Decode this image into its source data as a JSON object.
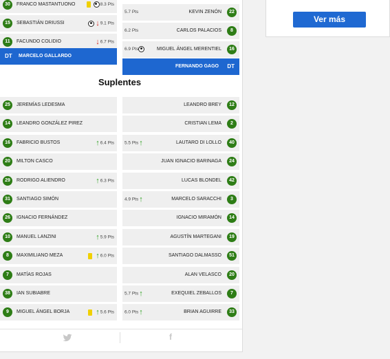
{
  "ver_mas_label": "Ver más",
  "suplentes_title": "Suplentes",
  "coach_label": "DT",
  "coaches": {
    "home": "MARCELO GALLARDO",
    "away": "FERNANDO GAGO"
  },
  "home_starters": [
    {
      "num": "30",
      "name": "FRANCO MASTANTUONO",
      "pts": "8.3 Pts",
      "card": true,
      "goal": true,
      "arrow": ""
    },
    {
      "num": "15",
      "name": "SEBASTIÁN DRIUSSI",
      "pts": "9.1 Pts",
      "card": false,
      "goal": true,
      "arrow": "down"
    },
    {
      "num": "11",
      "name": "FACUNDO COLIDIO",
      "pts": "6.7 Pts",
      "card": false,
      "goal": false,
      "arrow": "down"
    }
  ],
  "away_starters": [
    {
      "num": "22",
      "name": "KEVIN ZENÓN",
      "pts": "5.7 Pts",
      "goal": false,
      "arrow": ""
    },
    {
      "num": "8",
      "name": "CARLOS PALACIOS",
      "pts": "6.2 Pts",
      "goal": false,
      "arrow": ""
    },
    {
      "num": "16",
      "name": "MIGUEL ÁNGEL MERENTIEL",
      "pts": "6.9 Pts",
      "goal": true,
      "arrow": ""
    }
  ],
  "home_subs": [
    {
      "num": "25",
      "name": "JEREMÍAS LEDESMA",
      "pts": "",
      "card": false,
      "arrow": ""
    },
    {
      "num": "14",
      "name": "LEANDRO GONZÁLEZ PIREZ",
      "pts": "",
      "card": false,
      "arrow": ""
    },
    {
      "num": "16",
      "name": "FABRICIO BUSTOS",
      "pts": "6.4 Pts",
      "card": false,
      "arrow": "up"
    },
    {
      "num": "20",
      "name": "MILTON CASCO",
      "pts": "",
      "card": false,
      "arrow": ""
    },
    {
      "num": "29",
      "name": "RODRIGO ALIENDRO",
      "pts": "6.3 Pts",
      "card": false,
      "arrow": "up"
    },
    {
      "num": "31",
      "name": "SANTIAGO SIMÓN",
      "pts": "",
      "card": false,
      "arrow": ""
    },
    {
      "num": "26",
      "name": "IGNACIO FERNÁNDEZ",
      "pts": "",
      "card": false,
      "arrow": ""
    },
    {
      "num": "10",
      "name": "MANUEL LANZINI",
      "pts": "5.9 Pts",
      "card": false,
      "arrow": "up"
    },
    {
      "num": "8",
      "name": "MAXIMILIANO MEZA",
      "pts": "6.0 Pts",
      "card": true,
      "arrow": "up"
    },
    {
      "num": "7",
      "name": "MATÍAS ROJAS",
      "pts": "",
      "card": false,
      "arrow": ""
    },
    {
      "num": "38",
      "name": "IAN SUBIABRE",
      "pts": "",
      "card": false,
      "arrow": ""
    },
    {
      "num": "9",
      "name": "MIGUEL ÁNGEL BORJA",
      "pts": "5.6 Pts",
      "card": true,
      "arrow": "up"
    }
  ],
  "away_subs": [
    {
      "num": "12",
      "name": "LEANDRO BREY",
      "pts": "",
      "arrow": ""
    },
    {
      "num": "2",
      "name": "CRISTIAN LEMA",
      "pts": "",
      "arrow": ""
    },
    {
      "num": "40",
      "name": "LAUTARO DI LOLLO",
      "pts": "5.5 Pts",
      "arrow": "up"
    },
    {
      "num": "24",
      "name": "JUAN IGNACIO BARINAGA",
      "pts": "",
      "arrow": ""
    },
    {
      "num": "42",
      "name": "LUCAS BLONDEL",
      "pts": "",
      "arrow": ""
    },
    {
      "num": "3",
      "name": "MARCELO SARACCHI",
      "pts": "4.9 Pts",
      "arrow": "up"
    },
    {
      "num": "14",
      "name": "IGNACIO MIRAMÓN",
      "pts": "",
      "arrow": ""
    },
    {
      "num": "19",
      "name": "AGUSTÍN MARTEGANI",
      "pts": "",
      "arrow": ""
    },
    {
      "num": "51",
      "name": "SANTIAGO DALMASSO",
      "pts": "",
      "arrow": ""
    },
    {
      "num": "20",
      "name": "ALAN VELASCO",
      "pts": "",
      "arrow": ""
    },
    {
      "num": "7",
      "name": "EXEQUIEL ZEBALLOS",
      "pts": "5.7 Pts",
      "arrow": "up"
    },
    {
      "num": "33",
      "name": "BRIAN AGUIRRE",
      "pts": "6.0 Pts",
      "arrow": "up"
    }
  ],
  "icons": {
    "twitter": "twitter-icon",
    "facebook": "facebook-icon",
    "goal": "soccer-ball-icon",
    "card": "yellow-card-icon"
  },
  "colors": {
    "number_badge": "#2e7d16",
    "coach_bar": "#1e67d0",
    "up_arrow": "#2ea01f",
    "down_arrow": "#d0241c",
    "yellow_card": "#f0d000",
    "button": "#1f69d2"
  }
}
